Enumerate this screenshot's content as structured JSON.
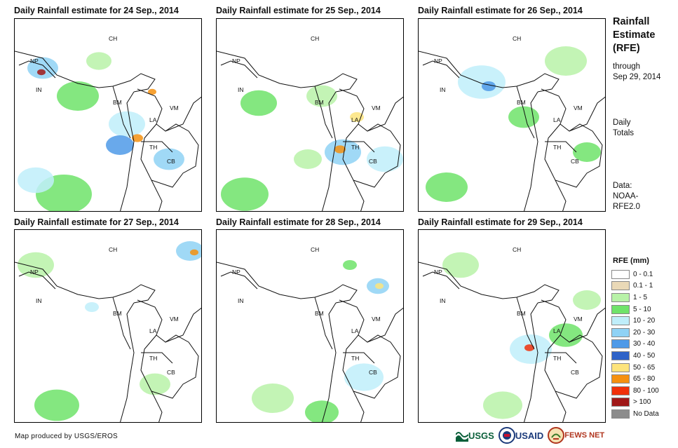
{
  "panels": [
    {
      "title": "Daily Rainfall estimate for 24 Sep., 2014"
    },
    {
      "title": "Daily Rainfall estimate for 25 Sep., 2014"
    },
    {
      "title": "Daily Rainfall estimate for 26 Sep., 2014"
    },
    {
      "title": "Daily Rainfall estimate for 27 Sep., 2014"
    },
    {
      "title": "Daily Rainfall estimate for 28 Sep., 2014"
    },
    {
      "title": "Daily Rainfall estimate for 29 Sep., 2014"
    }
  ],
  "country_labels": [
    "CH",
    "NP",
    "IN",
    "BM",
    "LA",
    "VM",
    "TH",
    "CB"
  ],
  "sidebar": {
    "title_lines": [
      "Rainfall",
      "Estimate",
      "(RFE)"
    ],
    "through_lines": [
      "through",
      "Sep 29, 2014"
    ],
    "totals_lines": [
      "Daily",
      "Totals"
    ],
    "data_lines": [
      "Data:",
      "NOAA-",
      "RFE2.0"
    ]
  },
  "legend": {
    "title": "RFE (mm)",
    "items": [
      {
        "label": "0 - 0.1",
        "color": "#ffffff"
      },
      {
        "label": "0.1 - 1",
        "color": "#ead9b7"
      },
      {
        "label": "1 - 5",
        "color": "#b8f2a8"
      },
      {
        "label": "5 - 10",
        "color": "#6fe36a"
      },
      {
        "label": "10 - 20",
        "color": "#bfeefa"
      },
      {
        "label": "20 - 30",
        "color": "#8fd2f5"
      },
      {
        "label": "30 - 40",
        "color": "#4f9ae8"
      },
      {
        "label": "40 - 50",
        "color": "#2d62c8"
      },
      {
        "label": "50 - 65",
        "color": "#fde47c"
      },
      {
        "label": "65 - 80",
        "color": "#f5900f"
      },
      {
        "label": "80 - 100",
        "color": "#f0300a"
      },
      {
        "label": "> 100",
        "color": "#a01818"
      },
      {
        "label": "No Data",
        "color": "#8c8c8c"
      }
    ]
  },
  "footer": "Map produced by USGS/EROS",
  "logos": [
    "USGS",
    "USAID",
    "FEWS NET"
  ]
}
